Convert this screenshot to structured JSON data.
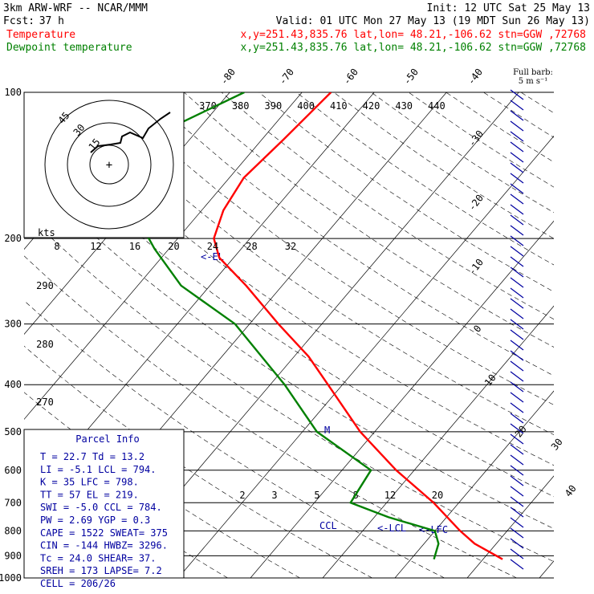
{
  "header": {
    "model": "3km ARW-WRF -- NCAR/MMM",
    "init": "Init: 12 UTC Sat 25 May 13",
    "fcst_label": "Fcst:",
    "fcst_value": "37 h",
    "valid": "Valid: 01 UTC Mon 27 May 13 (19 MDT Sun 26 May 13)",
    "temp_label": "Temperature",
    "temp_loc": "x,y=251.43,835.76   lat,lon= 48.21,-106.62  stn=GGW ,72768",
    "dew_label": "Dewpoint temperature",
    "dew_loc": "x,y=251.43,835.76   lat,lon= 48.21,-106.62  stn=GGW ,72768",
    "full_barb": "Full barb:",
    "full_barb_units": "5 m s⁻¹",
    "colors": {
      "temp": "#ff0000",
      "dew": "#008000",
      "ink": "#0000a0"
    }
  },
  "chart_data": {
    "type": "line",
    "pressure_levels": [
      {
        "p": 100,
        "label": "100"
      },
      {
        "p": 200,
        "label": "200"
      },
      {
        "p": 300,
        "label": "300"
      },
      {
        "p": 400,
        "label": "400"
      },
      {
        "p": 500,
        "label": "500"
      },
      {
        "p": 600,
        "label": "600"
      },
      {
        "p": 700,
        "label": "700"
      },
      {
        "p": 800,
        "label": "800"
      },
      {
        "p": 900,
        "label": "900"
      },
      {
        "p": 1000,
        "label": "1000"
      }
    ],
    "isotherm_labels": [
      "-80",
      "-70",
      "-60",
      "-50",
      "-40",
      "-30",
      "-20",
      "-10",
      "0",
      "10",
      "20",
      "30",
      "40"
    ],
    "theta_labels": [
      "370",
      "380",
      "390",
      "400",
      "410",
      "420",
      "430",
      "440"
    ],
    "hodo_speed_labels": [
      "8",
      "12",
      "16",
      "20",
      "24",
      "28",
      "32"
    ],
    "hodo_units": "kts",
    "hodo_ring_labels": [
      "45",
      "30",
      "15"
    ],
    "theta_e_labels": [
      "290",
      "280",
      "270"
    ],
    "mixing_ratio_labels": [
      "2",
      "3",
      "5",
      "8",
      "12",
      "20"
    ],
    "level_markers": [
      "EL",
      "LCL",
      "LFC",
      "CCL",
      "M"
    ],
    "series": [
      {
        "name": "Temperature",
        "points": [
          {
            "p": 915,
            "t": 22.7
          },
          {
            "p": 850,
            "t": 17
          },
          {
            "p": 800,
            "t": 13.5
          },
          {
            "p": 700,
            "t": 6.5
          },
          {
            "p": 600,
            "t": -2.5
          },
          {
            "p": 500,
            "t": -12
          },
          {
            "p": 400,
            "t": -22
          },
          {
            "p": 350,
            "t": -28
          },
          {
            "p": 300,
            "t": -36
          },
          {
            "p": 250,
            "t": -45
          },
          {
            "p": 219,
            "t": -52
          },
          {
            "p": 200,
            "t": -55
          },
          {
            "p": 175,
            "t": -57
          },
          {
            "p": 150,
            "t": -58
          },
          {
            "p": 125,
            "t": -57
          },
          {
            "p": 100,
            "t": -56
          }
        ]
      },
      {
        "name": "Dewpoint temperature",
        "points": [
          {
            "p": 915,
            "t": 13.2
          },
          {
            "p": 850,
            "t": 12
          },
          {
            "p": 800,
            "t": 10
          },
          {
            "p": 750,
            "t": 2
          },
          {
            "p": 700,
            "t": -5
          },
          {
            "p": 600,
            "t": -6
          },
          {
            "p": 500,
            "t": -18
          },
          {
            "p": 400,
            "t": -28
          },
          {
            "p": 300,
            "t": -42
          },
          {
            "p": 250,
            "t": -54
          },
          {
            "p": 210,
            "t": -62
          },
          {
            "p": 200,
            "t": -64
          },
          {
            "p": 170,
            "t": -74
          },
          {
            "p": 150,
            "t": -78
          },
          {
            "p": 125,
            "t": -76
          },
          {
            "p": 100,
            "t": -68
          }
        ]
      }
    ],
    "ylabel": "",
    "xlabel": ""
  },
  "parcel": {
    "title": "Parcel Info",
    "rows": [
      "T  =   22.7  Td =  13.2",
      "LI =   -5.1  LCL =  794.",
      "K  =     35  LFC =  798.",
      "TT =     57  EL  =   219.",
      "SWI =  -5.0  CCL =  784.",
      "PW =   2.69  YGP =   0.3",
      "CAPE =  1522  SWEAT=  375",
      "CIN =   -144  HWBZ= 3296.",
      "Tc =   24.0  SHEAR=  37.",
      "SREH =   173  LAPSE=  7.2",
      "CELL = 206/26"
    ]
  }
}
